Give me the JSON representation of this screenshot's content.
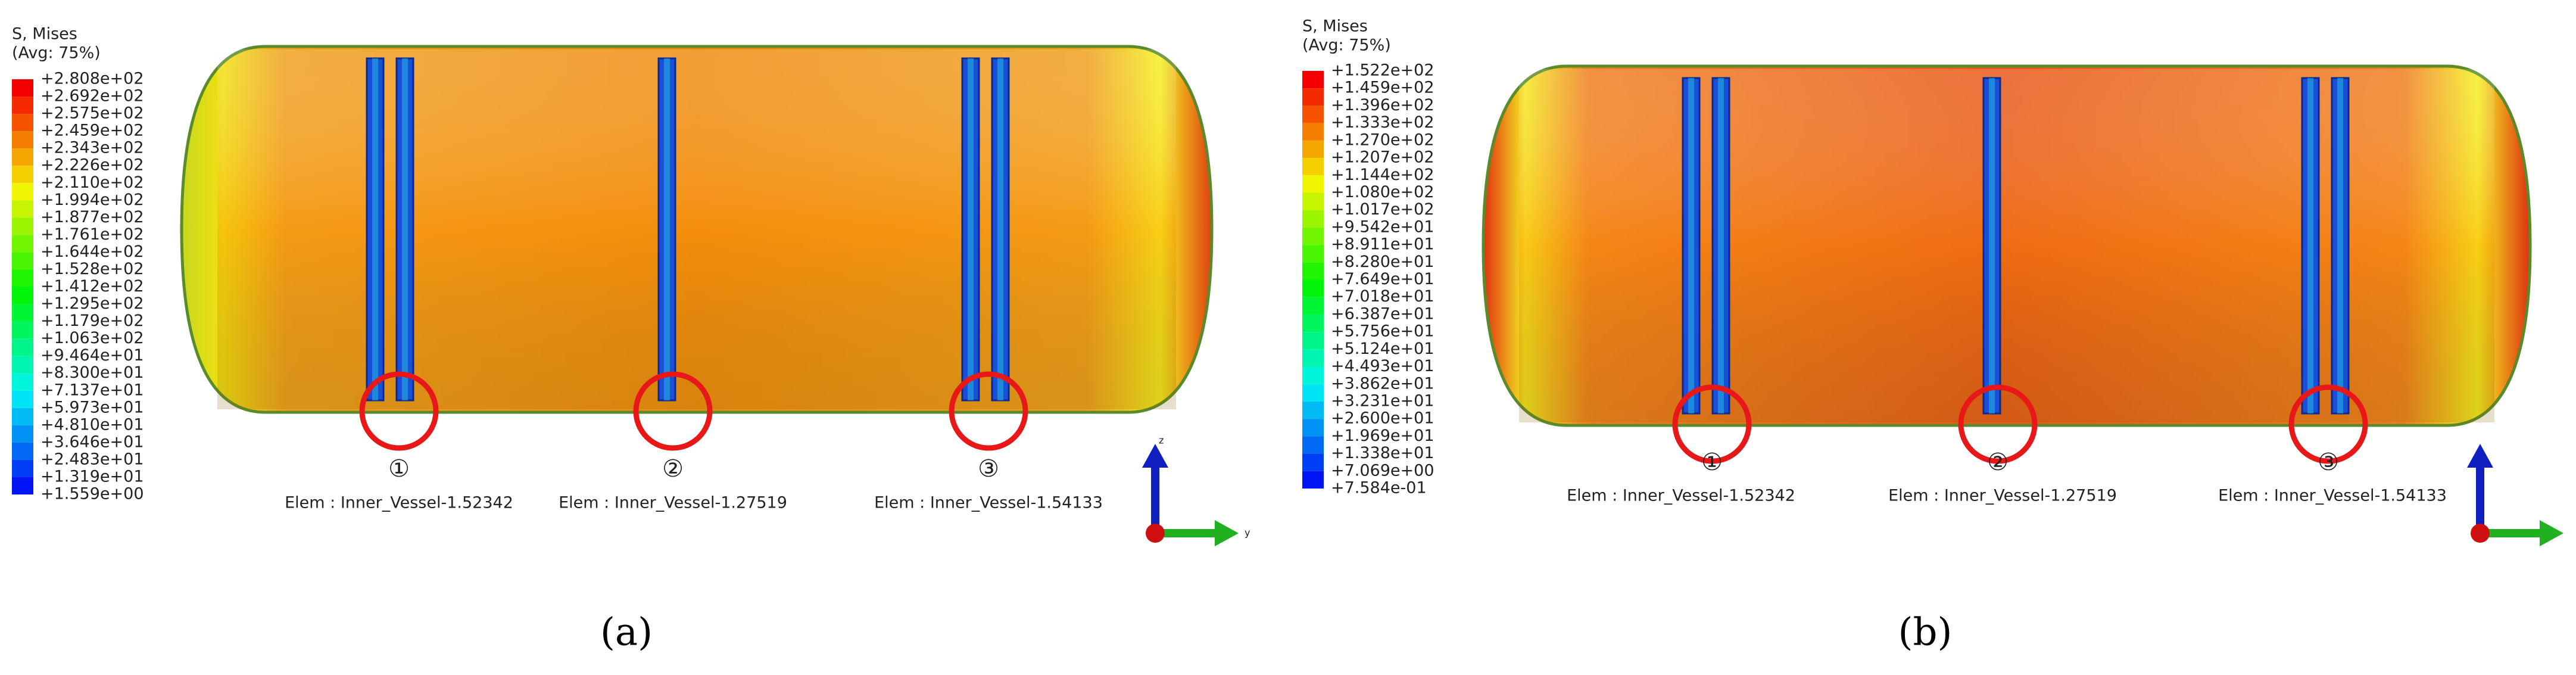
{
  "panels": [
    {
      "legend_title": [
        "S, Mises",
        "(Avg: 75%)"
      ],
      "legend_values": [
        "+2.808e+02",
        "+2.692e+02",
        "+2.575e+02",
        "+2.459e+02",
        "+2.343e+02",
        "+2.226e+02",
        "+2.110e+02",
        "+1.994e+02",
        "+1.877e+02",
        "+1.761e+02",
        "+1.644e+02",
        "+1.528e+02",
        "+1.412e+02",
        "+1.295e+02",
        "+1.179e+02",
        "+1.063e+02",
        "+9.464e+01",
        "+8.300e+01",
        "+7.137e+01",
        "+5.973e+01",
        "+4.810e+01",
        "+3.646e+01",
        "+2.483e+01",
        "+1.319e+01",
        "+1.559e+00"
      ],
      "markers": [
        "①",
        "②",
        "③"
      ],
      "elements": [
        "Elem : Inner_Vessel-1.52342",
        "Elem : Inner_Vessel-1.27519",
        "Elem : Inner_Vessel-1.54133"
      ],
      "axis_labels": [
        "z",
        "y"
      ],
      "caption": "(a)"
    },
    {
      "legend_title": [
        "S, Mises",
        "(Avg: 75%)"
      ],
      "legend_values": [
        "+1.522e+02",
        "+1.459e+02",
        "+1.396e+02",
        "+1.333e+02",
        "+1.270e+02",
        "+1.207e+02",
        "+1.144e+02",
        "+1.080e+02",
        "+1.017e+02",
        "+9.542e+01",
        "+8.911e+01",
        "+8.280e+01",
        "+7.649e+01",
        "+7.018e+01",
        "+6.387e+01",
        "+5.756e+01",
        "+5.124e+01",
        "+4.493e+01",
        "+3.862e+01",
        "+3.231e+01",
        "+2.600e+01",
        "+1.969e+01",
        "+1.338e+01",
        "+7.069e+00",
        "+7.584e-01"
      ],
      "markers": [
        "①",
        "②",
        "③"
      ],
      "elements": [
        "Elem : Inner_Vessel-1.52342",
        "Elem : Inner_Vessel-1.27519",
        "Elem : Inner_Vessel-1.54133"
      ],
      "caption": "(b)"
    }
  ]
}
